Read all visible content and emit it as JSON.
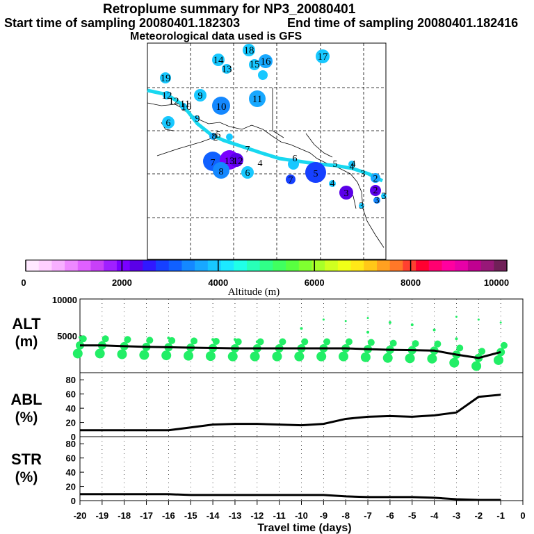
{
  "header": {
    "title": "Retroplume summary for NP3_20080401",
    "start": "Start time of sampling 20080401.182303",
    "end": "End time of sampling 20080401.182416",
    "met": "Meteorological data used is GFS"
  },
  "colorbar": {
    "colors": [
      "#ffe8ff",
      "#ffd0ff",
      "#f8b0ff",
      "#ee88ff",
      "#e060ff",
      "#c840f8",
      "#a020ff",
      "#7a00ff",
      "#5a00e8",
      "#3018ff",
      "#1640ff",
      "#1060ff",
      "#1488ff",
      "#18a8ff",
      "#18c8ff",
      "#1ce8ff",
      "#20ffe8",
      "#28ffb8",
      "#30ff88",
      "#40ff60",
      "#58ff40",
      "#80ff30",
      "#a8ff28",
      "#d0ff20",
      "#f0ff18",
      "#ffe818",
      "#ffc818",
      "#ffa020",
      "#ff7828",
      "#ff4030",
      "#ff0030",
      "#ff0070",
      "#ff00a0",
      "#e800a8",
      "#c00090",
      "#981878",
      "#702058"
    ],
    "labels": [
      "0",
      "2000",
      "4000",
      "6000",
      "8000",
      "10000"
    ],
    "title": "Altitude (m)"
  },
  "map": {
    "labels": [
      "18",
      "14",
      "13",
      "15",
      "16",
      "17",
      "19",
      "12",
      "9",
      "12",
      "11",
      "10",
      "10",
      "11",
      "9",
      "6",
      "8",
      "5",
      "7",
      "7",
      "13",
      "12",
      "8",
      "4",
      "6",
      "4",
      "6",
      "5",
      "3",
      "5",
      "4",
      "7",
      "4",
      "3",
      "2",
      "3",
      "2",
      "3",
      "2",
      "3"
    ]
  },
  "chart_data": [
    {
      "type": "scatter+line",
      "name": "ALT",
      "ylabel": "ALT (m)",
      "yticks": [
        "10000",
        "5000"
      ],
      "ylim": [
        0,
        10000
      ],
      "xlim": [
        -20,
        0
      ],
      "median_line": {
        "x": [
          -20,
          -19,
          -18,
          -17,
          -16,
          -15,
          -14,
          -13,
          -12,
          -11,
          -10,
          -9,
          -8,
          -7,
          -6,
          -5,
          -4,
          -3,
          -2,
          -1
        ],
        "y": [
          3700,
          3700,
          3600,
          3500,
          3450,
          3400,
          3350,
          3300,
          3300,
          3300,
          3300,
          3300,
          3300,
          3200,
          3100,
          3050,
          3000,
          2450,
          2000,
          2800
        ]
      },
      "points_color": "#22ee66"
    },
    {
      "type": "line",
      "name": "ABL",
      "ylabel": "ABL (%)",
      "yticks": [
        "80",
        "60",
        "40",
        "20",
        "0"
      ],
      "ylim": [
        0,
        90
      ],
      "x": [
        -20,
        -19,
        -18,
        -17,
        -16,
        -15,
        -14,
        -13,
        -12,
        -11,
        -10,
        -9,
        -8,
        -7,
        -6,
        -5,
        -4,
        -3,
        -2,
        -1
      ],
      "y": [
        9,
        9,
        9,
        9,
        9,
        13,
        17,
        18,
        18,
        17,
        16,
        18,
        25,
        28,
        29,
        28,
        30,
        34,
        56,
        59
      ]
    },
    {
      "type": "line",
      "name": "STR",
      "ylabel": "STR (%)",
      "yticks": [
        "80",
        "60",
        "40",
        "20",
        "0"
      ],
      "ylim": [
        0,
        90
      ],
      "x": [
        -20,
        -19,
        -18,
        -17,
        -16,
        -15,
        -14,
        -13,
        -12,
        -11,
        -10,
        -9,
        -8,
        -7,
        -6,
        -5,
        -4,
        -3,
        -2,
        -1
      ],
      "y": [
        9,
        9,
        9,
        9,
        9,
        8,
        8,
        8,
        8,
        8,
        8,
        8,
        6,
        5,
        5,
        5,
        4,
        2,
        1,
        1
      ]
    }
  ],
  "xaxis": {
    "ticks": [
      "-20",
      "-19",
      "-18",
      "-17",
      "-16",
      "-15",
      "-14",
      "-13",
      "-12",
      "-11",
      "-10",
      "-9",
      "-8",
      "-7",
      "-6",
      "-5",
      "-4",
      "-3",
      "-2",
      "-1",
      "0"
    ],
    "title": "Travel time (days)"
  }
}
